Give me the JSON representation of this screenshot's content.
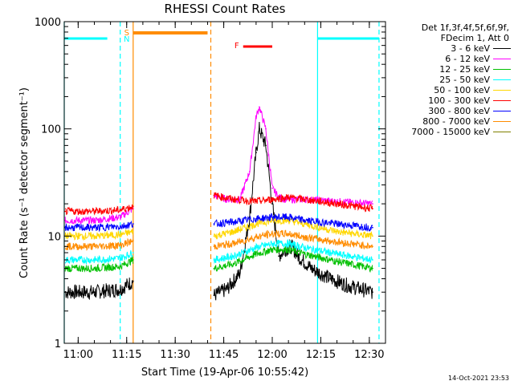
{
  "chart_data": {
    "type": "line",
    "title": "RHESSI Count Rates",
    "xlabel": "Start Time (19-Apr-06 10:55:42)",
    "ylabel": "Count Rate (s⁻¹ detector segment⁻¹)",
    "yscale": "log",
    "ylim": [
      1,
      1000
    ],
    "xlim": [
      "10:55:42",
      "12:35:00"
    ],
    "x_ticks": [
      "11:00",
      "11:15",
      "11:30",
      "11:45",
      "12:00",
      "12:15",
      "12:30"
    ],
    "y_ticks": [
      "1",
      "10",
      "100",
      "1000"
    ],
    "grid": false,
    "legend_position": "right",
    "legend_header": [
      "Det 1f,3f,4f,5f,6f,9f,",
      "FDecim 1, Att 0"
    ],
    "series": [
      {
        "name": "3 - 6 keV",
        "color": "#000000",
        "x": [
          "10:56",
          "11:05",
          "11:13",
          "11:17",
          "11:42",
          "11:46",
          "11:50",
          "11:53",
          "11:55",
          "11:56",
          "11:58",
          "12:00",
          "12:02",
          "12:04",
          "12:06",
          "12:08",
          "12:12",
          "12:18",
          "12:24",
          "12:31"
        ],
        "y": [
          3.0,
          3.0,
          3.2,
          3.8,
          2.8,
          3.2,
          4.5,
          15,
          60,
          100,
          70,
          20,
          6.5,
          7.5,
          8,
          6.5,
          5.0,
          4.0,
          3.4,
          3.0
        ]
      },
      {
        "name": "6 - 12 keV",
        "color": "#ff00ff",
        "x": [
          "10:56",
          "11:05",
          "11:13",
          "11:17",
          "11:42",
          "11:46",
          "11:50",
          "11:53",
          "11:55",
          "11:56",
          "11:58",
          "12:00",
          "12:02",
          "12:04",
          "12:06",
          "12:10",
          "12:20",
          "12:31"
        ],
        "y": [
          14,
          14,
          15,
          18,
          24,
          22,
          22,
          40,
          130,
          160,
          100,
          28,
          23,
          22,
          22,
          22,
          21,
          20
        ]
      },
      {
        "name": "12 - 25 keV",
        "color": "#00c000",
        "x": [
          "10:56",
          "11:05",
          "11:13",
          "11:17",
          "11:42",
          "11:48",
          "11:55",
          "12:00",
          "12:05",
          "12:10",
          "12:20",
          "12:31"
        ],
        "y": [
          5,
          5,
          5.2,
          6,
          5,
          5.5,
          6.8,
          7.5,
          7.5,
          6.8,
          5.8,
          5
        ]
      },
      {
        "name": "25 - 50 keV",
        "color": "#00ffff",
        "x": [
          "10:56",
          "11:05",
          "11:13",
          "11:17",
          "11:42",
          "11:48",
          "11:55",
          "12:00",
          "12:05",
          "12:10",
          "12:20",
          "12:31"
        ],
        "y": [
          6,
          6,
          6.2,
          7,
          6,
          6.5,
          7.8,
          8.5,
          8.5,
          7.8,
          6.8,
          6
        ]
      },
      {
        "name": "50 - 100 keV",
        "color": "#ffd700",
        "x": [
          "10:56",
          "11:05",
          "11:13",
          "11:17",
          "11:42",
          "11:48",
          "11:55",
          "12:00",
          "12:05",
          "12:10",
          "12:20",
          "12:31"
        ],
        "y": [
          10,
          10,
          10.3,
          11,
          10,
          11,
          13,
          14,
          14,
          13,
          11,
          10
        ]
      },
      {
        "name": "100 - 300 keV",
        "color": "#ff0000",
        "x": [
          "10:56",
          "11:05",
          "11:13",
          "11:17",
          "11:42",
          "11:48",
          "11:55",
          "12:00",
          "12:05",
          "12:10",
          "12:20",
          "12:31"
        ],
        "y": [
          17,
          17,
          17.5,
          19,
          24,
          22,
          21,
          22,
          23,
          22,
          20,
          18
        ]
      },
      {
        "name": "300 - 800 keV",
        "color": "#0000ff",
        "x": [
          "10:56",
          "11:05",
          "11:13",
          "11:17",
          "11:42",
          "11:48",
          "11:55",
          "12:00",
          "12:05",
          "12:10",
          "12:20",
          "12:31"
        ],
        "y": [
          12,
          12,
          12.3,
          13,
          13,
          13.5,
          14.5,
          15,
          15,
          14,
          13,
          12
        ]
      },
      {
        "name": "800 - 7000 keV",
        "color": "#ff8c00",
        "x": [
          "10:56",
          "11:05",
          "11:13",
          "11:17",
          "11:42",
          "11:48",
          "11:55",
          "12:00",
          "12:05",
          "12:10",
          "12:20",
          "12:31"
        ],
        "y": [
          8,
          8,
          8.2,
          9,
          8,
          8.5,
          9.8,
          10.5,
          10.5,
          9.8,
          8.8,
          8
        ]
      },
      {
        "name": "7000 - 15000 keV",
        "color": "#808000",
        "x": [],
        "y": []
      }
    ],
    "annotations": {
      "night_bars": [
        {
          "start": "10:55:42",
          "end": "11:09"
        },
        {
          "start": "12:14",
          "end": "12:33"
        }
      ],
      "saa_bar": {
        "label": "S",
        "start": "11:17",
        "end": "11:40"
      },
      "flare_bar": {
        "label": "F",
        "start": "11:51",
        "end": "12:00"
      },
      "n_label": "N",
      "vlines": [
        {
          "time": "10:55:42",
          "color": "#00ffff",
          "style": "solid"
        },
        {
          "time": "11:13",
          "color": "#00ffff",
          "style": "dashed"
        },
        {
          "time": "11:17",
          "color": "#ff8c00",
          "style": "solid"
        },
        {
          "time": "11:41",
          "color": "#ff8c00",
          "style": "dashed"
        },
        {
          "time": "12:14",
          "color": "#00ffff",
          "style": "solid"
        },
        {
          "time": "12:33",
          "color": "#00ffff",
          "style": "dashed"
        }
      ],
      "colors": {
        "night": "#00ffff",
        "saa": "#ff8c00",
        "flare": "#ff0000",
        "n_label": "#00ffff",
        "s_label": "#ff8c00"
      }
    }
  },
  "timestamp": "14-Oct-2021 23:53"
}
